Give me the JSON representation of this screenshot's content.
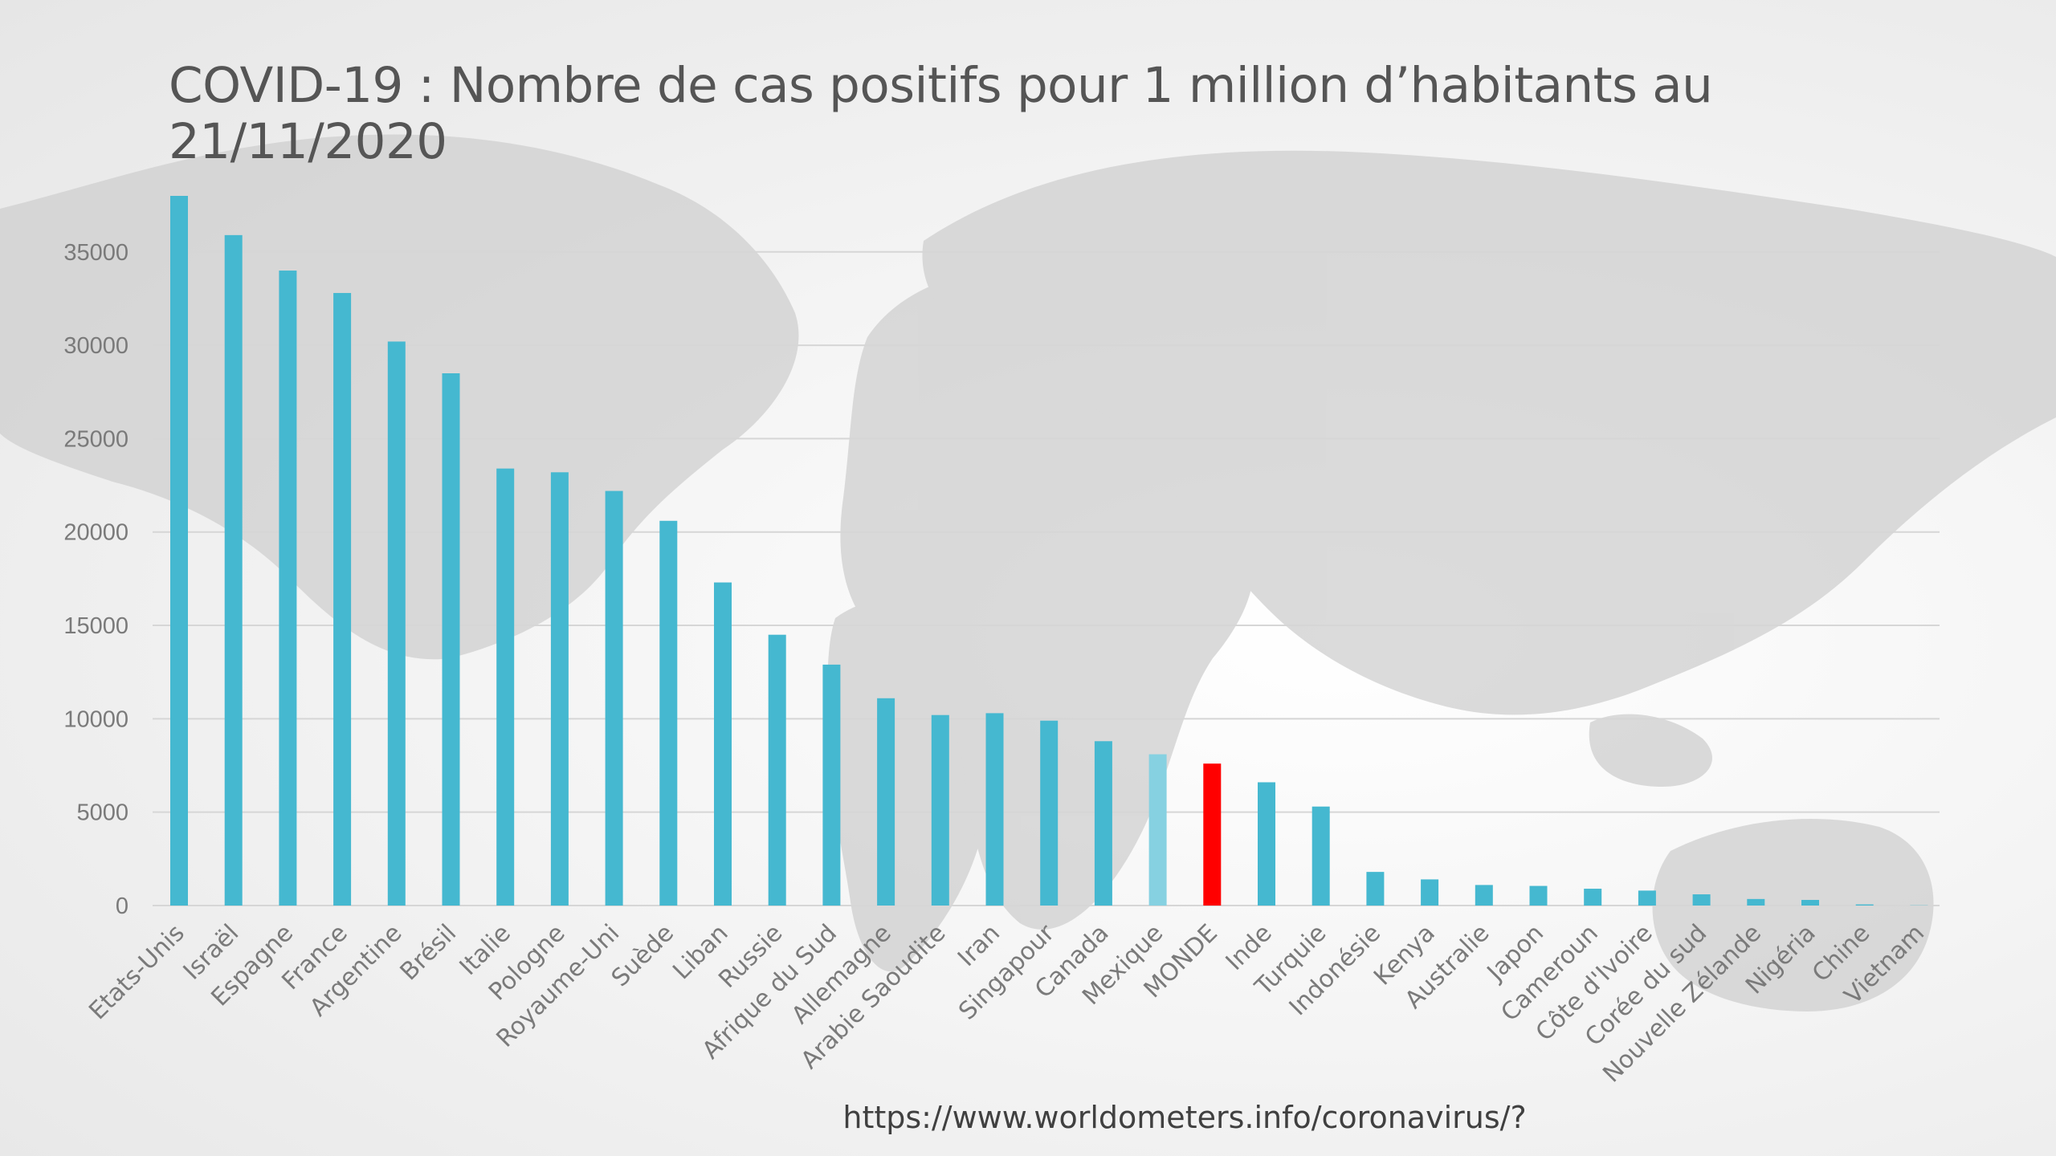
{
  "title": "COVID-19 : Nombre de cas positifs pour 1 million d’habitants au 21/11/2020",
  "source": "https://www.worldometers.info/coronavirus/?",
  "colors": {
    "bar": "#45B8D0",
    "highlight_light": "#86D1E1",
    "highlight_world": "#FF0000",
    "grid": "#d6d6d6",
    "label": "#7a7a7a",
    "map": "#cfcfcf"
  },
  "chart_data": {
    "type": "bar",
    "title": "COVID-19 : Nombre de cas positifs pour 1 million d’habitants au 21/11/2020",
    "xlabel": "",
    "ylabel": "",
    "ylim": [
      0,
      38000
    ],
    "yticks": [
      0,
      5000,
      10000,
      15000,
      20000,
      25000,
      30000,
      35000
    ],
    "grid": true,
    "legend": "none",
    "categories": [
      "Etats-Unis",
      "Israël",
      "Espagne",
      "France",
      "Argentine",
      "Brésil",
      "Italie",
      "Pologne",
      "Royaume-Uni",
      "Suède",
      "Liban",
      "Russie",
      "Afrique du Sud",
      "Allemagne",
      "Arabie Saoudite",
      "Iran",
      "Singapour",
      "Canada",
      "Mexique",
      "MONDE",
      "Inde",
      "Turquie",
      "Indonésie",
      "Kenya",
      "Australie",
      "Japon",
      "Cameroun",
      "Côte d'Ivoire",
      "Corée du sud",
      "Nouvelle Zélande",
      "Nigéria",
      "Chine",
      "Vietnam"
    ],
    "values": [
      38000,
      35900,
      34000,
      32800,
      30200,
      28500,
      23400,
      23200,
      22200,
      20600,
      17300,
      14500,
      12900,
      11100,
      10200,
      10300,
      9900,
      8800,
      8100,
      7600,
      6600,
      5300,
      1800,
      1400,
      1100,
      1050,
      900,
      800,
      600,
      350,
      300,
      60,
      12
    ],
    "bar_colors": [
      "bar",
      "bar",
      "bar",
      "bar",
      "bar",
      "bar",
      "bar",
      "bar",
      "bar",
      "bar",
      "bar",
      "bar",
      "bar",
      "bar",
      "bar",
      "bar",
      "bar",
      "bar",
      "highlight_light",
      "highlight_world",
      "bar",
      "bar",
      "bar",
      "bar",
      "bar",
      "bar",
      "bar",
      "bar",
      "bar",
      "bar",
      "bar",
      "bar",
      "bar"
    ]
  }
}
